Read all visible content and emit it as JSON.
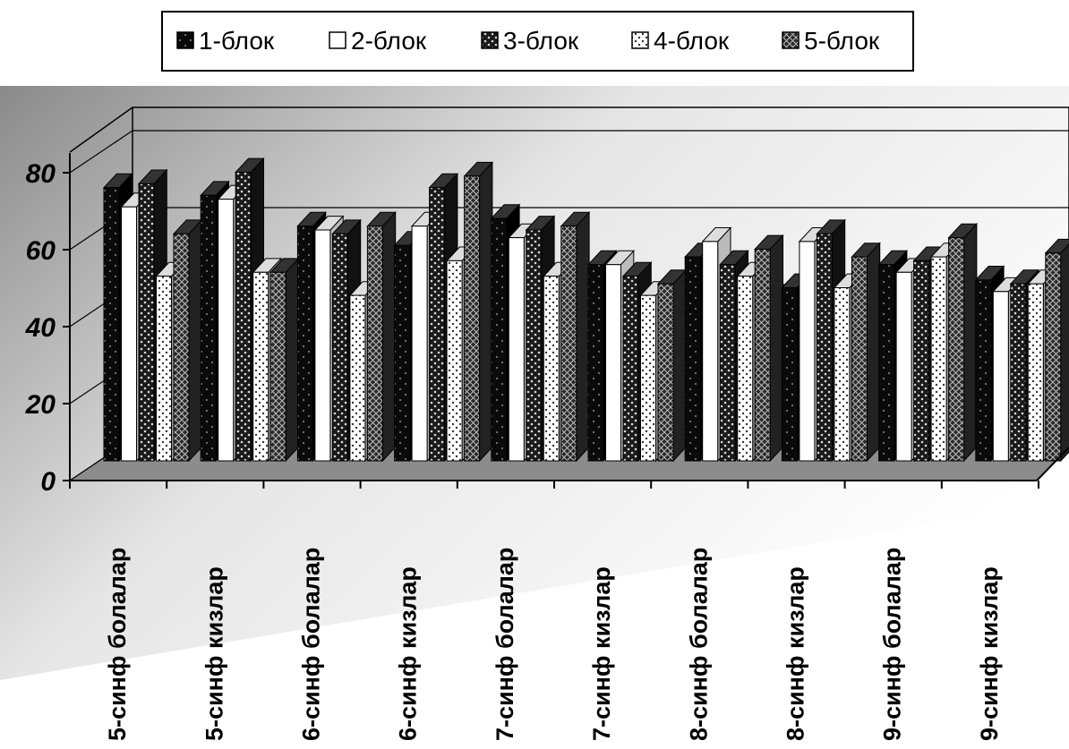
{
  "chart_data": {
    "type": "bar",
    "title": "",
    "xlabel": "",
    "ylabel": "",
    "ylim": [
      0,
      80
    ],
    "yticks": [
      "0",
      "20",
      "40",
      "60",
      "80"
    ],
    "grid": true,
    "legend_position": "top",
    "categories": [
      "5-синф болалар",
      "5-синф кизлар",
      "6-синф болалар",
      "6-синф кизлар",
      "7-синф болалар",
      "7-синф кизлар",
      "8-синф болалар",
      "8-синф кизлар",
      "9-синф болалар",
      "9-синф кизлар"
    ],
    "series": [
      {
        "name": "1-блок",
        "pattern": "black",
        "values": [
          71,
          69,
          61,
          56,
          63,
          51,
          53,
          45,
          51,
          47
        ]
      },
      {
        "name": "2-блок",
        "pattern": "white",
        "values": [
          66,
          68,
          60,
          61,
          58,
          51,
          57,
          57,
          49,
          44
        ]
      },
      {
        "name": "3-блок",
        "pattern": "dark-dots",
        "values": [
          72,
          75,
          59,
          71,
          60,
          48,
          51,
          59,
          52,
          46
        ]
      },
      {
        "name": "4-блок",
        "pattern": "light-dots",
        "values": [
          48,
          49,
          43,
          52,
          48,
          43,
          48,
          45,
          53,
          46
        ]
      },
      {
        "name": "5-блок",
        "pattern": "crosshatch",
        "values": [
          59,
          49,
          61,
          74,
          61,
          46,
          55,
          53,
          58,
          54
        ]
      }
    ],
    "colors": {
      "floor": "#8c8c8c",
      "wall_light": "#ffffff",
      "wall_dark": "#8a8a8a",
      "axis": "#000000"
    }
  }
}
